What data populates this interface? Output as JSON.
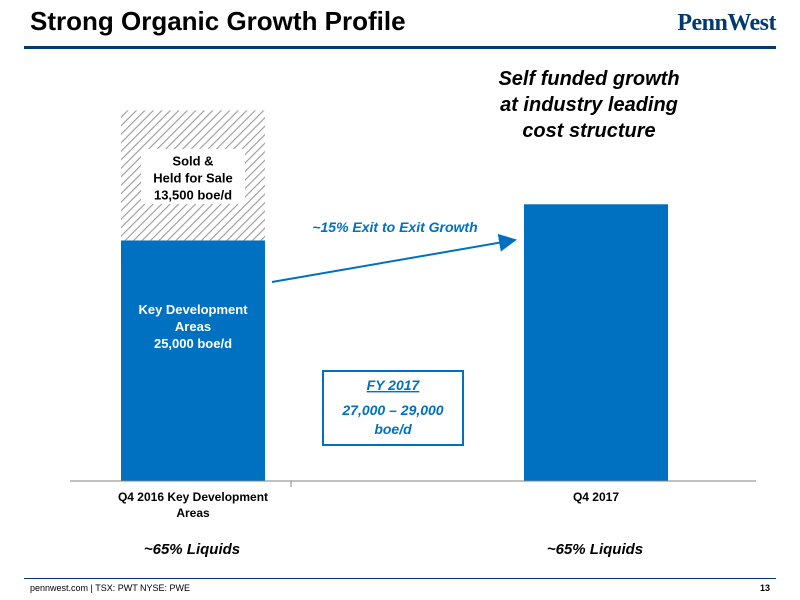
{
  "slide": {
    "title": "Strong Organic Growth Profile",
    "logo_text": "PennWest",
    "callout_lines": [
      "Self funded growth",
      "at industry leading",
      "cost structure"
    ],
    "footer_left": "pennwest.com | TSX: PWT NYSE: PWE",
    "page_number": "13",
    "colors": {
      "brand_blue": "#0070C0",
      "dark_blue": "#003a70",
      "hatch_gray": "#9a9a9a"
    }
  },
  "chart_data": {
    "type": "bar",
    "categories": [
      "Q4 2016 Key Development Areas",
      "Q4 2017"
    ],
    "category_lines": [
      [
        "Q4 2016 Key Development",
        "Areas"
      ],
      [
        "Q4 2017"
      ]
    ],
    "stacked": true,
    "series": [
      {
        "name": "Key Development Areas",
        "values": [
          25000,
          28750
        ],
        "label_lines": [
          "Key Development",
          "Areas",
          "25,000 boe/d"
        ],
        "style": "solid"
      },
      {
        "name": "Sold & Held for Sale",
        "values": [
          13500,
          0
        ],
        "label_lines": [
          "Sold &",
          "Held for Sale",
          "13,500 boe/d"
        ],
        "style": "hatched"
      }
    ],
    "unit": "boe/d",
    "ylim": [
      0,
      40000
    ],
    "annotations": {
      "growth_arrow": "~15% Exit to Exit Growth",
      "fy_box_title": "FY 2017",
      "fy_box_lines": [
        "27,000 – 29,000",
        "boe/d"
      ]
    },
    "liquids_labels": [
      "~65% Liquids",
      "~65% Liquids"
    ]
  }
}
